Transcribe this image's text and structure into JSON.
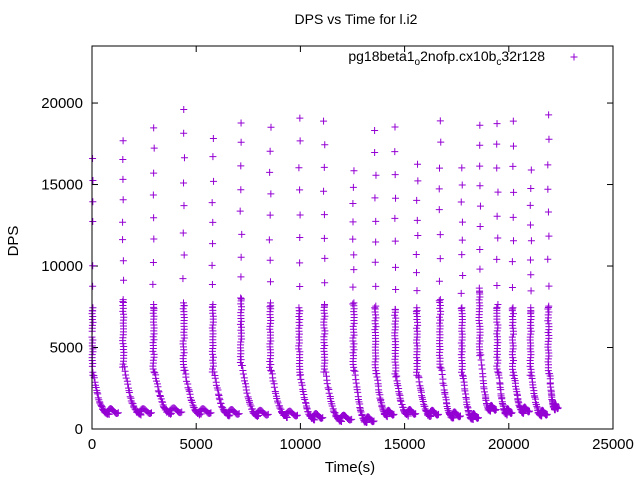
{
  "chart_data": {
    "type": "scatter",
    "title": "DPS vs Time for l.i2",
    "xlabel": "Time(s)",
    "ylabel": "DPS",
    "xlim": [
      0,
      25000
    ],
    "ylim": [
      0,
      23500
    ],
    "xticks": [
      0,
      5000,
      10000,
      15000,
      20000,
      25000
    ],
    "yticks": [
      0,
      5000,
      10000,
      15000,
      20000
    ],
    "grid": false,
    "legend_position": "top-right",
    "marker": "+",
    "series": [
      {
        "name_parts": [
          "pg18beta1",
          "o",
          "2nofp.cx10b",
          "c",
          "32r128"
        ],
        "color": "#9400D3",
        "cycles": [
          {
            "start": 20,
            "peak": 18000,
            "low": 3300,
            "trough": 900,
            "next": 1350
          },
          {
            "start": 1500,
            "peak": 17700,
            "low": 3800,
            "trough": 900,
            "next": 2950
          },
          {
            "start": 2950,
            "peak": 18500,
            "low": 3500,
            "trough": 950,
            "next": 4400
          },
          {
            "start": 4400,
            "peak": 19600,
            "low": 3600,
            "trough": 900,
            "next": 5800
          },
          {
            "start": 5800,
            "peak": 17900,
            "low": 3500,
            "trough": 850,
            "next": 7150
          },
          {
            "start": 7150,
            "peak": 18900,
            "low": 3900,
            "trough": 800,
            "next": 8550
          },
          {
            "start": 8550,
            "peak": 18400,
            "low": 3600,
            "trough": 750,
            "next": 9950
          },
          {
            "start": 9950,
            "peak": 19100,
            "low": 3300,
            "trough": 600,
            "next": 11150
          },
          {
            "start": 11150,
            "peak": 19000,
            "low": 3500,
            "trough": 500,
            "next": 12550
          },
          {
            "start": 12550,
            "peak": 15900,
            "low": 3600,
            "trough": 400,
            "next": 13600
          },
          {
            "start": 13600,
            "peak": 18300,
            "low": 3400,
            "trough": 800,
            "next": 14550
          },
          {
            "start": 14550,
            "peak": 18500,
            "low": 3200,
            "trough": 850,
            "next": 15600
          },
          {
            "start": 15600,
            "peak": 16300,
            "low": 3300,
            "trough": 800,
            "next": 16700
          },
          {
            "start": 16700,
            "peak": 18900,
            "low": 3800,
            "trough": 700,
            "next": 17750
          },
          {
            "start": 17750,
            "peak": 16100,
            "low": 3300,
            "trough": 600,
            "next": 18600
          },
          {
            "start": 18600,
            "peak": 18700,
            "low": 4500,
            "trough": 1100,
            "next": 19450
          },
          {
            "start": 19450,
            "peak": 18800,
            "low": 3500,
            "trough": 900,
            "next": 20200
          },
          {
            "start": 20200,
            "peak": 18900,
            "low": 3300,
            "trough": 1000,
            "next": 21050
          },
          {
            "start": 21050,
            "peak": 15800,
            "low": 3300,
            "trough": 800,
            "next": 21900
          },
          {
            "start": 21900,
            "peak": 19200,
            "low": 3400,
            "trough": 1200,
            "next": 22400
          }
        ]
      }
    ]
  }
}
